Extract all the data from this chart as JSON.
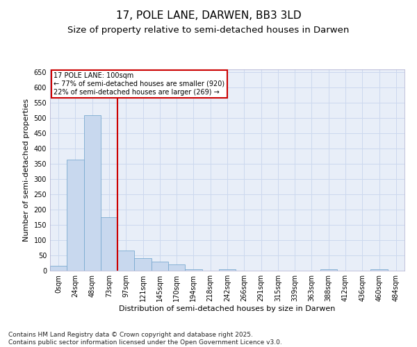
{
  "title": "17, POLE LANE, DARWEN, BB3 3LD",
  "subtitle": "Size of property relative to semi-detached houses in Darwen",
  "xlabel": "Distribution of semi-detached houses by size in Darwen",
  "ylabel": "Number of semi-detached properties",
  "bin_labels": [
    "0sqm",
    "24sqm",
    "48sqm",
    "73sqm",
    "97sqm",
    "121sqm",
    "145sqm",
    "170sqm",
    "194sqm",
    "218sqm",
    "242sqm",
    "266sqm",
    "291sqm",
    "315sqm",
    "339sqm",
    "363sqm",
    "388sqm",
    "412sqm",
    "436sqm",
    "460sqm",
    "484sqm"
  ],
  "bar_values": [
    15,
    365,
    510,
    175,
    65,
    40,
    30,
    20,
    5,
    0,
    5,
    0,
    0,
    0,
    0,
    0,
    5,
    0,
    0,
    5,
    0
  ],
  "bar_color": "#c8d8ee",
  "bar_edge_color": "#7aaad0",
  "grid_color": "#ccd8ee",
  "background_color": "#e8eef8",
  "vline_color": "#cc0000",
  "vline_pos": 3.5,
  "annotation_title": "17 POLE LANE: 100sqm",
  "annotation_line1": "← 77% of semi-detached houses are smaller (920)",
  "annotation_line2": "22% of semi-detached houses are larger (269) →",
  "annotation_box_color": "#cc0000",
  "ylim": [
    0,
    660
  ],
  "yticks": [
    0,
    50,
    100,
    150,
    200,
    250,
    300,
    350,
    400,
    450,
    500,
    550,
    600,
    650
  ],
  "footnote": "Contains HM Land Registry data © Crown copyright and database right 2025.\nContains public sector information licensed under the Open Government Licence v3.0.",
  "title_fontsize": 11,
  "subtitle_fontsize": 9.5,
  "axis_label_fontsize": 8,
  "tick_fontsize": 7,
  "footnote_fontsize": 6.5
}
